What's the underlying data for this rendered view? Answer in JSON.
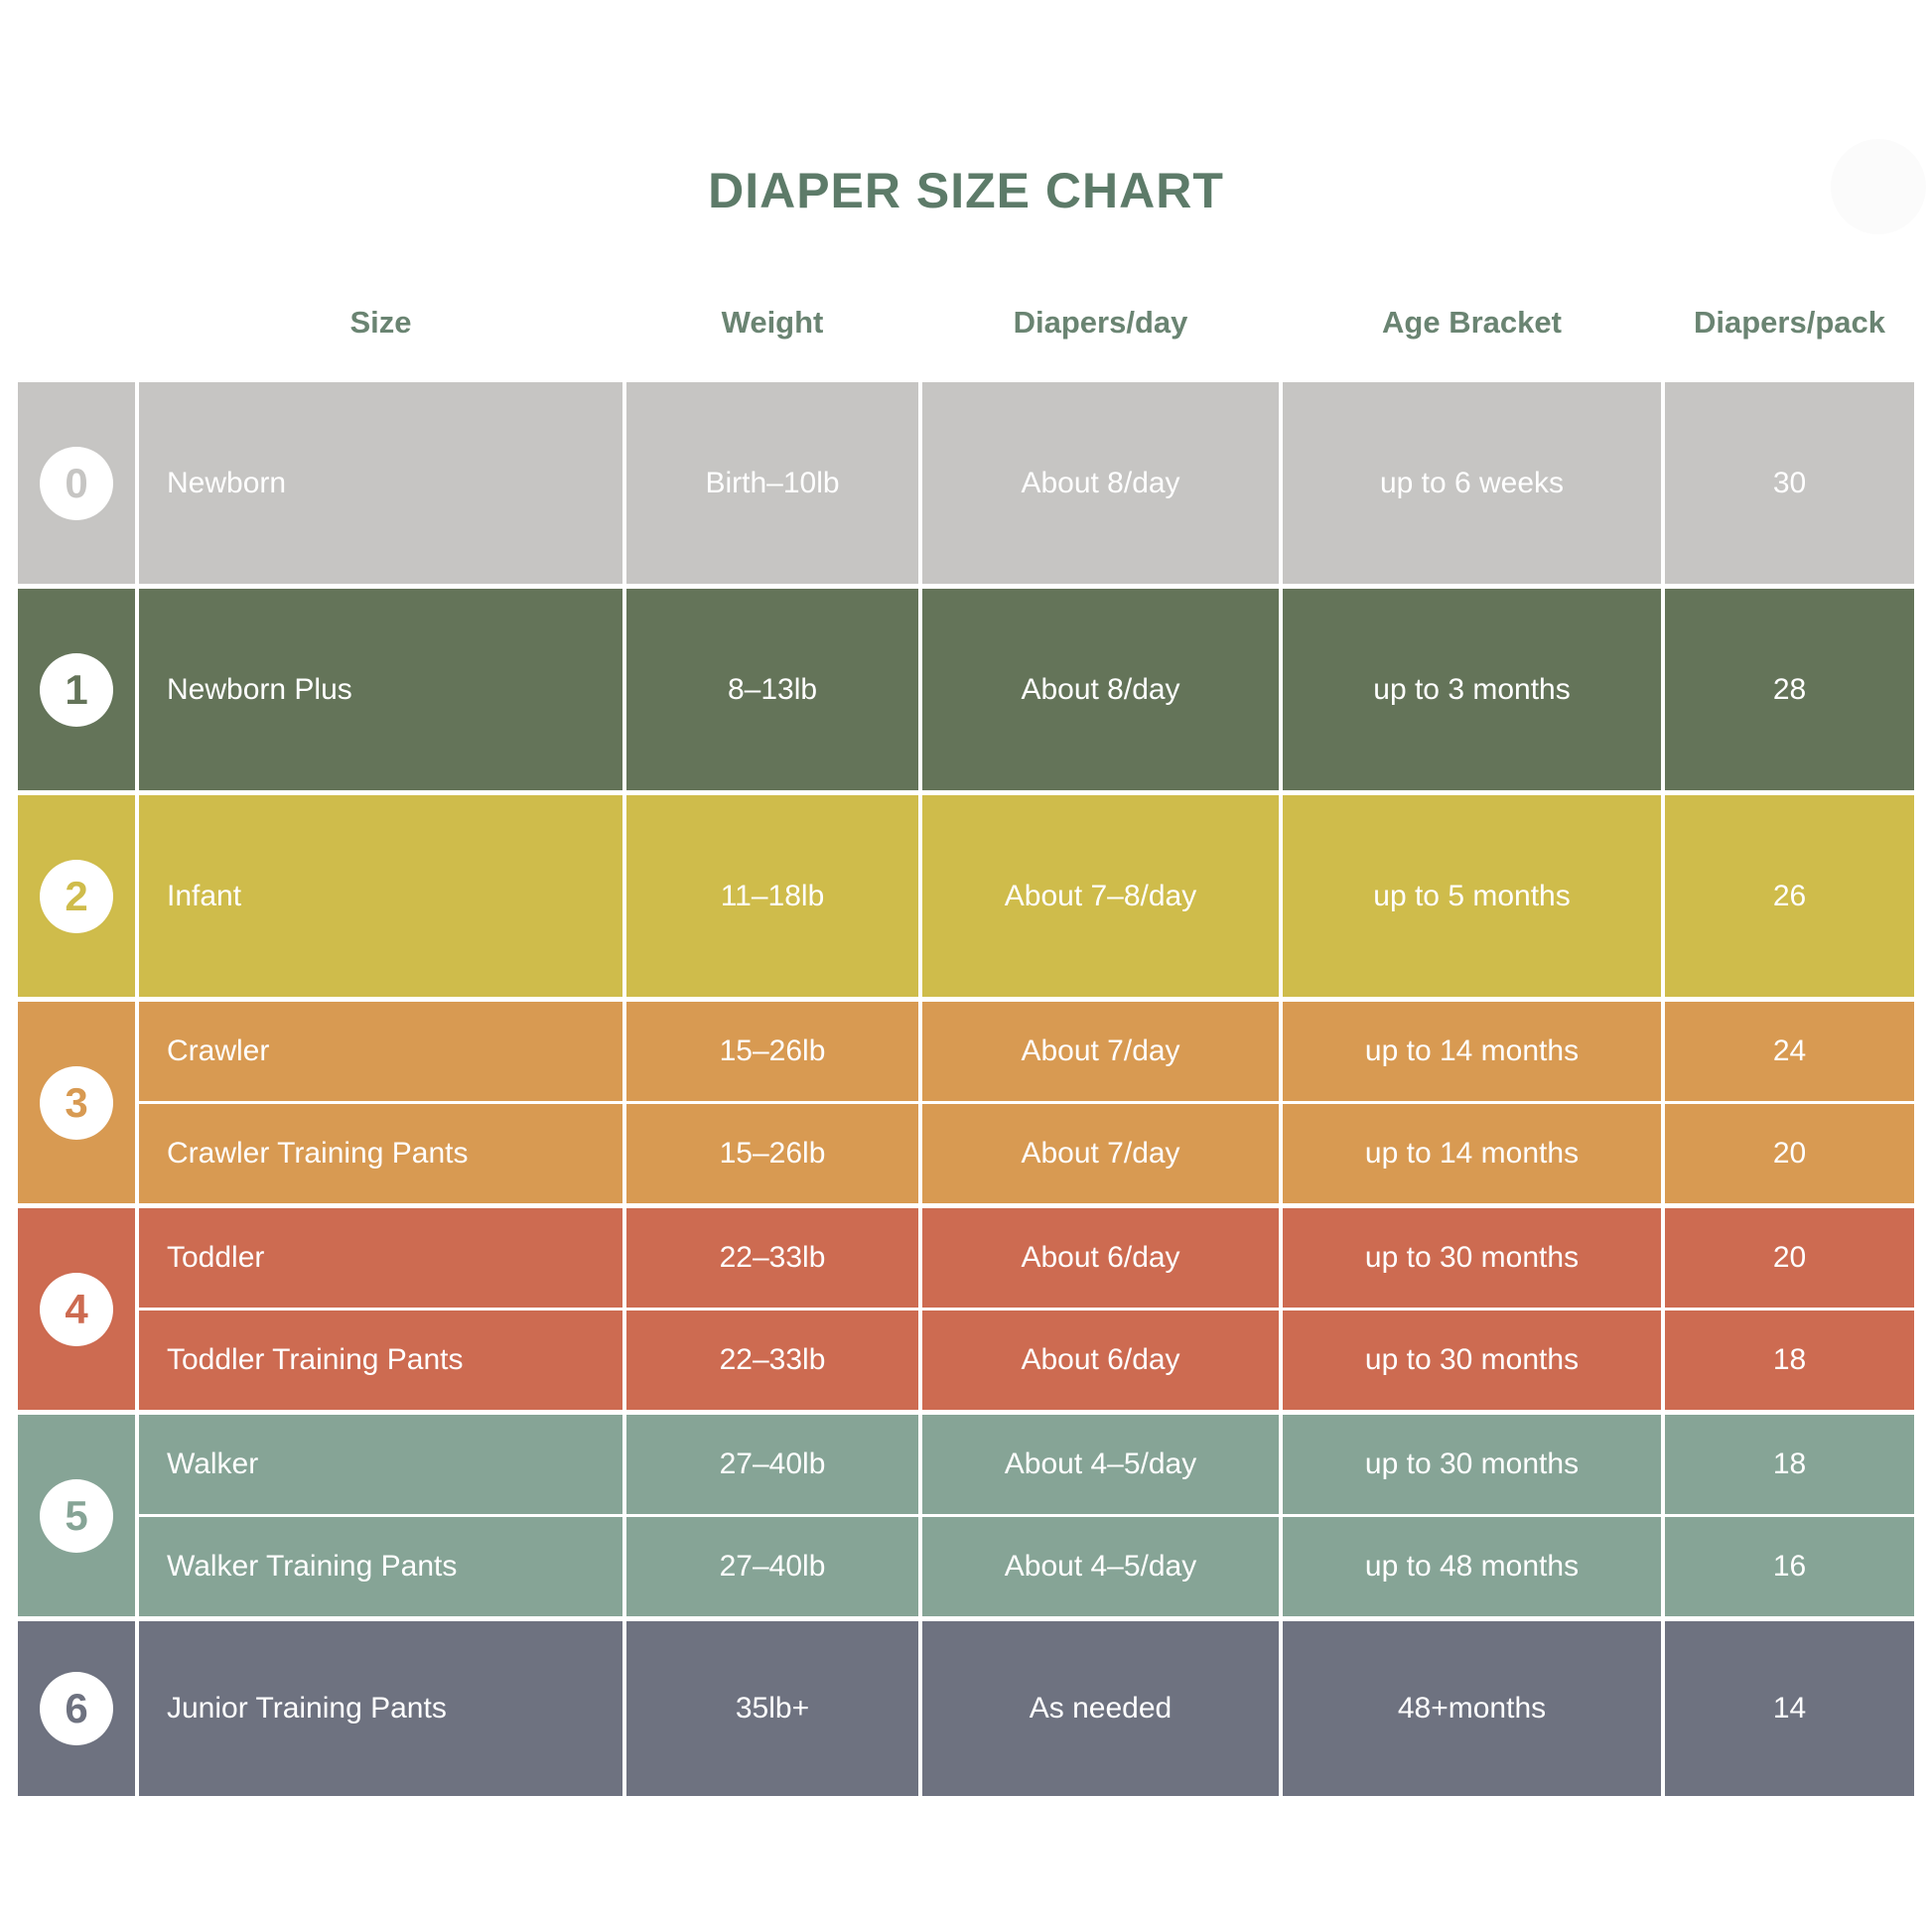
{
  "title": "DIAPER SIZE CHART",
  "title_color": "#5d7b69",
  "header_color": "#6a8472",
  "decor": {
    "blob_color": "#fbfbfb"
  },
  "columns": [
    "Size",
    "Weight",
    "Diapers/day",
    "Age Bracket",
    "Diapers/pack"
  ],
  "groups": [
    {
      "num": "0",
      "color": "#c6c5c3",
      "rows": [
        {
          "size": "Newborn",
          "weight": "Birth–10lb",
          "per_day": "About 8/day",
          "age": "up to 6 weeks",
          "per_pack": "30"
        }
      ]
    },
    {
      "num": "1",
      "color": "#647459",
      "rows": [
        {
          "size": "Newborn Plus",
          "weight": "8–13lb",
          "per_day": "About 8/day",
          "age": "up to 3 months",
          "per_pack": "28"
        }
      ]
    },
    {
      "num": "2",
      "color": "#cfbc4b",
      "rows": [
        {
          "size": "Infant",
          "weight": "11–18lb",
          "per_day": "About 7–8/day",
          "age": "up to 5 months",
          "per_pack": "26"
        }
      ]
    },
    {
      "num": "3",
      "color": "#d89a52",
      "rows": [
        {
          "size": "Crawler",
          "weight": "15–26lb",
          "per_day": "About 7/day",
          "age": "up to 14 months",
          "per_pack": "24"
        },
        {
          "size": "Crawler Training Pants",
          "weight": "15–26lb",
          "per_day": "About 7/day",
          "age": "up to 14 months",
          "per_pack": "20"
        }
      ]
    },
    {
      "num": "4",
      "color": "#cd6b51",
      "rows": [
        {
          "size": "Toddler",
          "weight": "22–33lb",
          "per_day": "About 6/day",
          "age": "up to 30 months",
          "per_pack": "20"
        },
        {
          "size": "Toddler Training Pants",
          "weight": "22–33lb",
          "per_day": "About 6/day",
          "age": "up to 30 months",
          "per_pack": "18"
        }
      ]
    },
    {
      "num": "5",
      "color": "#86a496",
      "rows": [
        {
          "size": "Walker",
          "weight": "27–40lb",
          "per_day": "About 4–5/day",
          "age": "up to 30 months",
          "per_pack": "18"
        },
        {
          "size": "Walker Training Pants",
          "weight": "27–40lb",
          "per_day": "About 4–5/day",
          "age": "up to 48 months",
          "per_pack": "16"
        }
      ]
    },
    {
      "num": "6",
      "color": "#6e7280",
      "rows": [
        {
          "size": "Junior Training Pants",
          "weight": "35lb+",
          "per_day": "As needed",
          "age": "48+months",
          "per_pack": "14"
        }
      ]
    }
  ],
  "chart_data": {
    "type": "table",
    "title": "DIAPER SIZE CHART",
    "columns": [
      "Size #",
      "Size",
      "Weight",
      "Diapers/day",
      "Age Bracket",
      "Diapers/pack"
    ],
    "rows": [
      [
        "0",
        "Newborn",
        "Birth–10lb",
        "About 8/day",
        "up to 6 weeks",
        30
      ],
      [
        "1",
        "Newborn Plus",
        "8–13lb",
        "About 8/day",
        "up to 3 months",
        28
      ],
      [
        "2",
        "Infant",
        "11–18lb",
        "About 7–8/day",
        "up to 5 months",
        26
      ],
      [
        "3",
        "Crawler",
        "15–26lb",
        "About 7/day",
        "up to 14 months",
        24
      ],
      [
        "3",
        "Crawler Training Pants",
        "15–26lb",
        "About 7/day",
        "up to 14 months",
        20
      ],
      [
        "4",
        "Toddler",
        "22–33lb",
        "About 6/day",
        "up to 30 months",
        20
      ],
      [
        "4",
        "Toddler Training Pants",
        "22–33lb",
        "About 6/day",
        "up to 30 months",
        18
      ],
      [
        "5",
        "Walker",
        "27–40lb",
        "About 4–5/day",
        "up to 30 months",
        18
      ],
      [
        "5",
        "Walker Training Pants",
        "27–40lb",
        "About 4–5/day",
        "up to 48 months",
        16
      ],
      [
        "6",
        "Junior Training Pants",
        "35lb+",
        "As needed",
        "48+months",
        14
      ]
    ],
    "row_band_colors": [
      "#c6c5c3",
      "#647459",
      "#cfbc4b",
      "#d89a52",
      "#cd6b51",
      "#86a496",
      "#6e7280"
    ],
    "legend_position": "none",
    "grid": false
  }
}
